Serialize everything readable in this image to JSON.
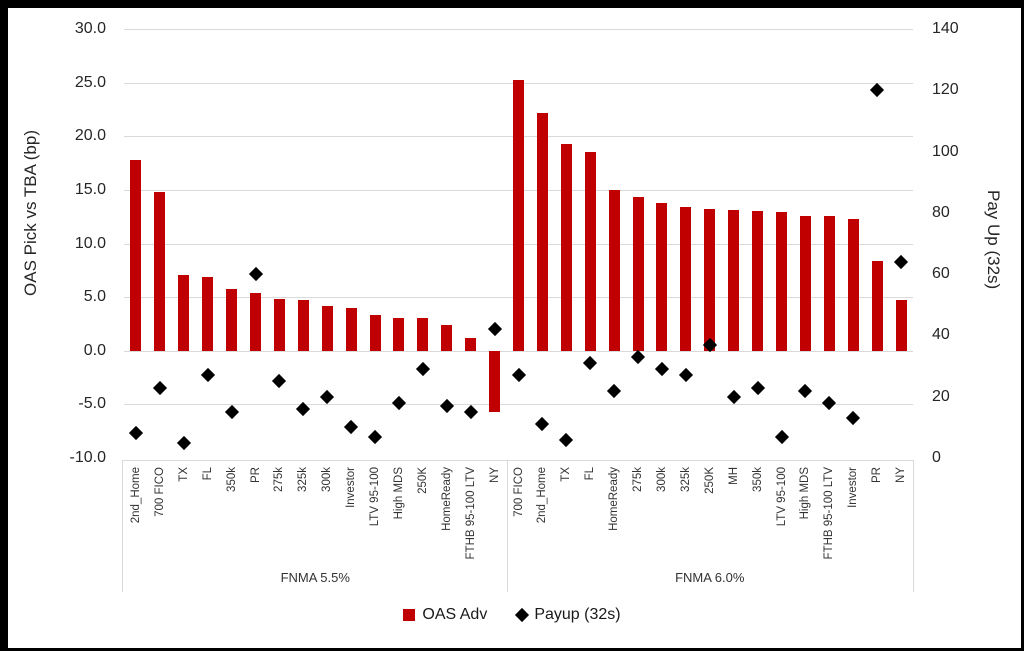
{
  "chart_data": {
    "type": "bar",
    "subtype": "combo-bar-and-scatter-dual-axis",
    "title": "",
    "left_axis": {
      "label": "OAS Pick vs TBA (bp)",
      "min": -10,
      "max": 30,
      "tick_step": 5,
      "tick_labels": [
        "30.0",
        "25.0",
        "20.0",
        "15.0",
        "10.0",
        "5.0",
        "0.0",
        "-5.0",
        "-10.0"
      ]
    },
    "right_axis": {
      "label": "Pay Up (32s)",
      "min": 0,
      "max": 140,
      "tick_step": 20,
      "tick_labels": [
        "140",
        "120",
        "100",
        "80",
        "60",
        "40",
        "20",
        "0"
      ]
    },
    "grid": "horizontal-only",
    "legend_position": "bottom-center",
    "legend": [
      {
        "label": "OAS Adv",
        "marker": "square",
        "color": "#c00000"
      },
      {
        "label": "Payup (32s)",
        "marker": "diamond",
        "color": "#000000"
      }
    ],
    "colors": {
      "bar": "#c00000",
      "marker": "#000000",
      "gridline": "#d9d9d9"
    },
    "groups": [
      {
        "label": "FNMA 5.5%",
        "categories": [
          "2nd_Home",
          "700 FICO",
          "TX",
          "FL",
          "350k",
          "PR",
          "275k",
          "325k",
          "300k",
          "Investor",
          "LTV 95-100",
          "High MDS",
          "250K",
          "HomeReady",
          "FTHB 95-100 LTV",
          "NY"
        ],
        "series": [
          {
            "name": "OAS Adv",
            "axis": "left",
            "values": [
              17.8,
              14.8,
              7.1,
              6.9,
              5.8,
              5.4,
              4.8,
              4.7,
              4.2,
              4.0,
              3.3,
              3.1,
              3.1,
              2.4,
              1.2,
              -5.7
            ]
          },
          {
            "name": "Payup (32s)",
            "axis": "right",
            "values": [
              8,
              23,
              5,
              27,
              15,
              60,
              25,
              16,
              20,
              10,
              7,
              18,
              29,
              17,
              15,
              42
            ]
          }
        ]
      },
      {
        "label": "FNMA 6.0%",
        "categories": [
          "700 FICO",
          "2nd_Home",
          "TX",
          "FL",
          "HomeReady",
          "275k",
          "300k",
          "325k",
          "250K",
          "MH",
          "350k",
          "LTV 95-100",
          "High MDS",
          "FTHB 95-100 LTV",
          "Investor",
          "PR",
          "NY"
        ],
        "series": [
          {
            "name": "OAS Adv",
            "axis": "left",
            "values": [
              25.2,
              22.2,
              19.3,
              18.5,
              15.0,
              14.3,
              13.8,
              13.4,
              13.2,
              13.1,
              13.0,
              12.9,
              12.6,
              12.6,
              12.3,
              8.4,
              4.7
            ]
          },
          {
            "name": "Payup (32s)",
            "axis": "right",
            "values": [
              27,
              11,
              6,
              31,
              22,
              33,
              29,
              27,
              37,
              20,
              23,
              7,
              22,
              18,
              13,
              120,
              64
            ]
          }
        ]
      }
    ]
  }
}
